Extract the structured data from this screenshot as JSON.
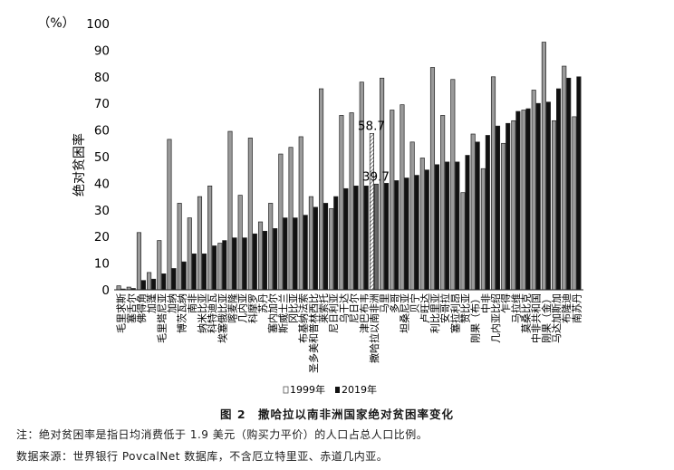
{
  "figure": {
    "caption": "图 2　撒哈拉以南非洲国家绝对贫困率变化",
    "note": "注：绝对贫困率是指日均消费低于 1.9 美元（购买力平价）的人口占总人口比例。",
    "source": "数据来源：世界银行 PovcalNet 数据库，不含厄立特里亚、赤道几内亚。"
  },
  "chart_data": {
    "type": "bar",
    "ylabel": "绝对贫困率",
    "yunit": "（%）",
    "ylim": [
      0,
      100
    ],
    "yticks": [
      0,
      10,
      20,
      30,
      40,
      50,
      60,
      70,
      80,
      90,
      100
    ],
    "legend_position": "bottom-center",
    "colors": {
      "s1999": "#9a9a9a",
      "s2019": "#111111",
      "avg": "#d8d8d8"
    },
    "highlight_index": 25,
    "annotations": [
      {
        "text": "58.7",
        "category_index": 25,
        "series": 0,
        "value": 58.7
      },
      {
        "text": "39.7",
        "category_index": 25,
        "series": 1,
        "value": 39.7
      }
    ],
    "categories": [
      "毛里求斯",
      "塞舌尔",
      "佛得角",
      "加蓬",
      "毛里塔尼亚",
      "加纳",
      "博茨瓦纳",
      "南非",
      "纳米比亚",
      "科特迪瓦",
      "埃塞俄比亚",
      "喀麦隆",
      "几内亚",
      "科摩罗",
      "苏丹",
      "塞内加尔",
      "斯威士兰",
      "冈比亚",
      "布基纳法索",
      "圣多美和普林西比",
      "莱索托",
      "尼日利亚",
      "乌干达",
      "尼日尔",
      "津巴布韦",
      "撒哈拉以南非洲",
      "马里",
      "多哥",
      "坦桑尼亚",
      "贝宁",
      "卢旺达",
      "利比里亚",
      "安哥拉",
      "塞拉利昂",
      "赞比亚",
      "刚果（布）",
      "中非",
      "几内亚比绍",
      "乍得",
      "马拉维",
      "莫桑比克",
      "中非共和国",
      "刚果（金）",
      "马达加斯加",
      "布隆迪",
      "南苏丹"
    ],
    "series": [
      {
        "name": "1999年",
        "values": [
          1.5,
          1.0,
          21.5,
          6.5,
          18.5,
          56.5,
          32.5,
          27.0,
          35.0,
          39.0,
          17.5,
          59.5,
          35.5,
          57.0,
          25.5,
          32.5,
          51.0,
          53.5,
          57.5,
          35.0,
          75.5,
          30.5,
          65.5,
          66.5,
          78.0,
          58.7,
          79.5,
          67.5,
          69.5,
          55.5,
          49.5,
          83.5,
          65.5,
          79.0,
          36.5,
          58.5,
          45.5,
          80.0,
          55.0,
          63.5,
          67.5,
          75.0,
          93.0,
          63.5,
          84.0,
          65.0
        ]
      },
      {
        "name": "2019年",
        "values": [
          0.3,
          0.5,
          3.5,
          4.0,
          6.0,
          8.0,
          10.5,
          13.5,
          13.5,
          16.5,
          18.5,
          19.5,
          19.5,
          21.0,
          22.0,
          23.0,
          27.0,
          27.0,
          28.0,
          31.0,
          32.5,
          35.0,
          38.0,
          39.0,
          39.0,
          39.7,
          40.0,
          41.0,
          42.0,
          43.0,
          45.0,
          47.0,
          48.0,
          48.0,
          50.5,
          55.5,
          58.0,
          61.5,
          62.5,
          67.0,
          68.0,
          70.0,
          70.5,
          75.5,
          79.5,
          80.0
        ]
      }
    ]
  }
}
